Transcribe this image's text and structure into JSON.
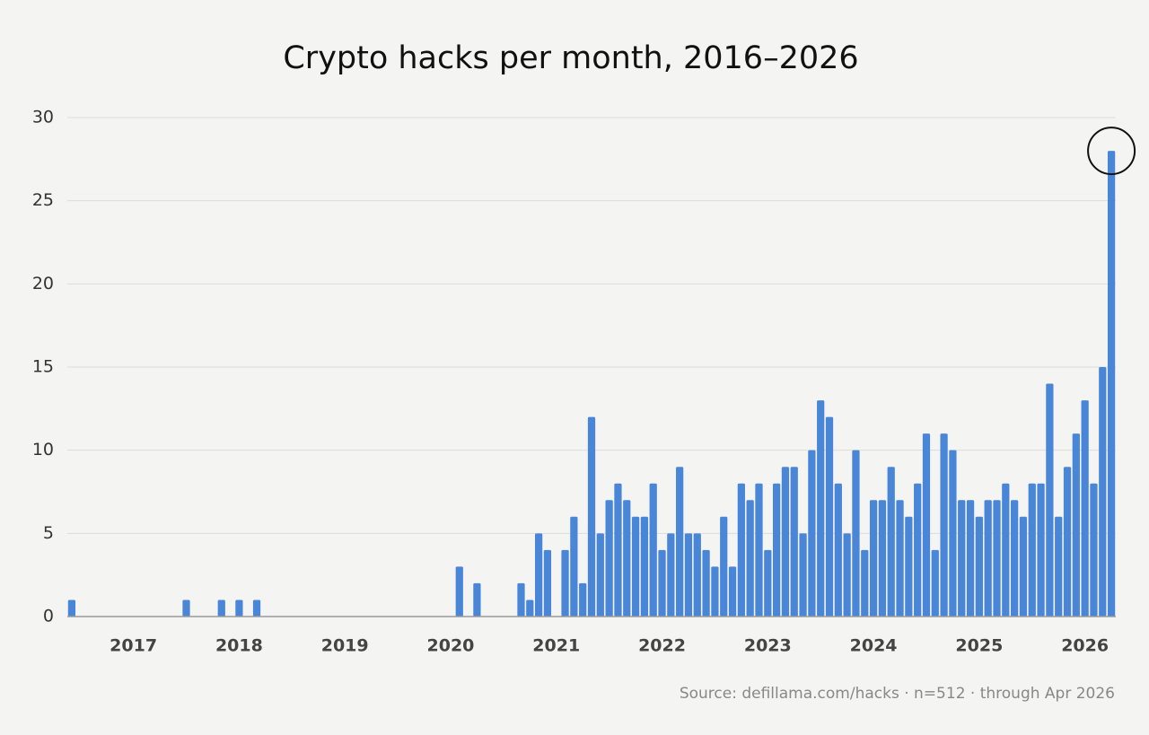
{
  "chart_data": {
    "type": "bar",
    "title": "Crypto hacks per month, 2016–2026",
    "source": "Source: defillama.com/hacks · n=512 · through Apr 2026",
    "color": "#4a86d8",
    "grid": true,
    "ylim": [
      0,
      30
    ],
    "yticks": [
      0,
      5,
      10,
      15,
      20,
      25,
      30
    ],
    "categories": [
      null,
      null,
      null,
      null,
      null,
      null,
      null,
      "2017",
      null,
      null,
      null,
      null,
      null,
      null,
      null,
      null,
      null,
      null,
      null,
      "2018",
      null,
      null,
      null,
      null,
      null,
      null,
      null,
      null,
      null,
      null,
      null,
      "2019",
      null,
      null,
      null,
      null,
      null,
      null,
      null,
      null,
      null,
      null,
      null,
      "2020",
      null,
      null,
      null,
      null,
      null,
      null,
      null,
      null,
      null,
      null,
      null,
      "2021",
      null,
      null,
      null,
      null,
      null,
      null,
      null,
      null,
      null,
      null,
      null,
      "2022",
      null,
      null,
      null,
      null,
      null,
      null,
      null,
      null,
      null,
      null,
      null,
      "2023",
      null,
      null,
      null,
      null,
      null,
      null,
      null,
      null,
      null,
      null,
      null,
      "2024",
      null,
      null,
      null,
      null,
      null,
      null,
      null,
      null,
      null,
      null,
      null,
      "2025",
      null,
      null,
      null,
      null,
      null,
      null,
      null,
      null,
      null,
      null,
      null,
      "2026",
      null,
      null,
      null
    ],
    "values": [
      1,
      0,
      0,
      0,
      0,
      0,
      0,
      0,
      0,
      0,
      0,
      0,
      0,
      1,
      0,
      0,
      0,
      1,
      0,
      1,
      0,
      1,
      0,
      0,
      0,
      0,
      0,
      0,
      0,
      0,
      0,
      0,
      0,
      0,
      0,
      0,
      0,
      0,
      0,
      0,
      0,
      0,
      0,
      0,
      3,
      0,
      2,
      0,
      0,
      0,
      0,
      2,
      1,
      5,
      4,
      0,
      4,
      6,
      2,
      12,
      5,
      7,
      8,
      7,
      6,
      6,
      8,
      4,
      5,
      9,
      5,
      5,
      4,
      3,
      6,
      3,
      8,
      7,
      8,
      4,
      8,
      9,
      9,
      5,
      10,
      13,
      12,
      8,
      5,
      10,
      4,
      7,
      7,
      9,
      7,
      6,
      8,
      11,
      4,
      11,
      10,
      7,
      7,
      6,
      7,
      7,
      8,
      7,
      6,
      8,
      8,
      14,
      6,
      9,
      11,
      13,
      8,
      15,
      28
    ]
  }
}
